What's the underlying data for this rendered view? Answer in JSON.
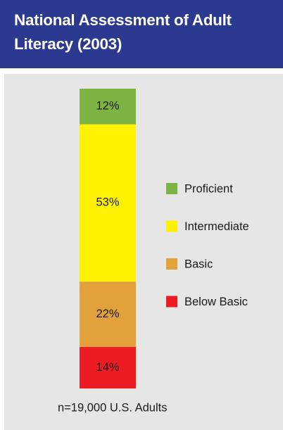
{
  "chart_data": {
    "type": "stacked-bar",
    "title": "National Assessment of Adult Literacy (2003)",
    "series": [
      {
        "name": "Proficient",
        "color": "#7db343",
        "values": [
          12
        ],
        "value_labels": [
          "12%"
        ]
      },
      {
        "name": "Intermediate",
        "color": "#fff200",
        "values": [
          53
        ],
        "value_labels": [
          "53%"
        ]
      },
      {
        "name": "Basic",
        "color": "#e2a13b",
        "values": [
          22
        ],
        "value_labels": [
          "22%"
        ]
      },
      {
        "name": "Below Basic",
        "color": "#ed1c24",
        "values": [
          14
        ],
        "value_labels": [
          "14%"
        ]
      }
    ],
    "footnote": "n=19,000 U.S. Adults"
  }
}
